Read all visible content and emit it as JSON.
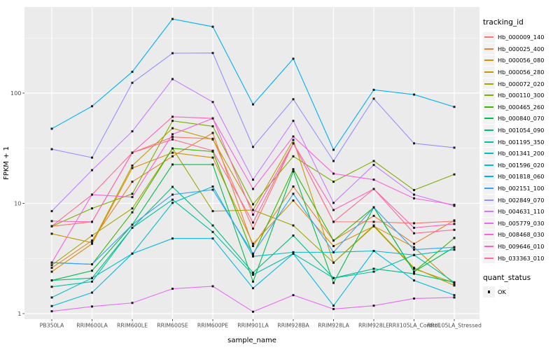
{
  "figure": {
    "y_axis_title": "FPKM + 1",
    "x_axis_title": "sample_name",
    "legend_title": "tracking_id",
    "legend2_title": "quant_status",
    "legend2_item": "OK",
    "panel_bg": "#EBEBEB",
    "grid_color": "#FFFFFF",
    "tick_label_color": "#4D4D4D",
    "point_color": "#1a1a1a"
  },
  "chart_data": {
    "type": "line",
    "title": "",
    "xlabel": "sample_name",
    "ylabel": "FPKM + 1",
    "y_scale": "log10",
    "y_ticks": [
      1,
      10,
      100
    ],
    "y_minor_ticks": [
      3.1623,
      31.623,
      316.23
    ],
    "ylim": [
      1,
      610
    ],
    "grid": true,
    "legend_position": "right",
    "point_shape": "black-square",
    "quant_status": "OK",
    "categories": [
      "PB350LA",
      "RRIM600LA",
      "RRIM600LE",
      "RRIM600SE",
      "RRIM600PE",
      "RRIM901LA",
      "RRIM928BA",
      "RRIM928LA",
      "RRIM928LE",
      "RRII105LA_Control",
      "RRII105LA_Stressed"
    ],
    "series": [
      {
        "name": "Hb_000009_140",
        "color": "#F8766D",
        "values": [
          6.2,
          6.8,
          28.8,
          40,
          38.5,
          5.9,
          35,
          6.8,
          6.8,
          6.6,
          6.9
        ]
      },
      {
        "name": "Hb_000025_400",
        "color": "#EA8331",
        "values": [
          2.6,
          4.6,
          15.7,
          26.7,
          43.5,
          4.1,
          14.2,
          4.6,
          7.7,
          4.3,
          7.0
        ]
      },
      {
        "name": "Hb_000056_080",
        "color": "#D89000",
        "values": [
          2.4,
          4.3,
          20.9,
          28.8,
          26.0,
          4.3,
          10.6,
          4.1,
          6.2,
          4.0,
          1.85
        ]
      },
      {
        "name": "Hb_000056_280",
        "color": "#C09B00",
        "values": [
          5.3,
          4.4,
          22.0,
          48.0,
          38.0,
          8.7,
          37.6,
          2.9,
          6.3,
          2.6,
          1.8
        ]
      },
      {
        "name": "Hb_000072_020",
        "color": "#A3A500",
        "values": [
          2.75,
          5.1,
          9.0,
          31.5,
          8.5,
          8.7,
          6.3,
          2.9,
          6.2,
          2.55,
          1.9
        ]
      },
      {
        "name": "Hb_000110_300",
        "color": "#7CAE00",
        "values": [
          6.2,
          9.0,
          12.2,
          56.0,
          50.0,
          9.8,
          26.7,
          15.7,
          24.2,
          13.2,
          18.3
        ]
      },
      {
        "name": "Hb_000465_260",
        "color": "#39B600",
        "values": [
          2.9,
          2.8,
          8.3,
          31.5,
          29.5,
          3.4,
          20.4,
          4.6,
          9.2,
          2.4,
          4.85
        ]
      },
      {
        "name": "Hb_000840_070",
        "color": "#00BB4E",
        "values": [
          2.0,
          2.45,
          6.4,
          22.5,
          22.5,
          1.95,
          19.5,
          1.9,
          9.2,
          2.4,
          4.0
        ]
      },
      {
        "name": "Hb_001054_090",
        "color": "#00BF7D",
        "values": [
          2.0,
          2.1,
          6.0,
          14.1,
          6.3,
          2.35,
          5.1,
          2.1,
          2.55,
          2.3,
          1.92
        ]
      },
      {
        "name": "Hb_001195_350",
        "color": "#00C1A3",
        "values": [
          1.75,
          1.95,
          6.0,
          10.8,
          5.5,
          2.25,
          3.5,
          2.1,
          2.4,
          3.4,
          1.92
        ]
      },
      {
        "name": "Hb_001341_200",
        "color": "#00BFC4",
        "values": [
          1.4,
          2.1,
          3.5,
          10.1,
          14.2,
          3.3,
          3.6,
          3.6,
          3.7,
          3.4,
          3.8
        ]
      },
      {
        "name": "Hb_001596_020",
        "color": "#00BAE0",
        "values": [
          1.17,
          1.55,
          3.5,
          4.8,
          4.8,
          1.7,
          3.5,
          1.18,
          3.7,
          2.0,
          1.47
        ]
      },
      {
        "name": "Hb_001818_060",
        "color": "#00B0F6",
        "values": [
          47.5,
          76,
          156,
          470,
          400,
          79,
          205,
          30.6,
          107,
          97,
          75
        ]
      },
      {
        "name": "Hb_002151_100",
        "color": "#35A2FF",
        "values": [
          2.9,
          2.8,
          6.4,
          12.0,
          13.3,
          3.5,
          12.2,
          3.6,
          9.2,
          3.8,
          4.0
        ]
      },
      {
        "name": "Hb_002849_070",
        "color": "#9590FF",
        "values": [
          31,
          26,
          124,
          230,
          231,
          32.5,
          88,
          24.2,
          89,
          35,
          32
        ]
      },
      {
        "name": "Hb_004631_110",
        "color": "#C77CFF",
        "values": [
          8.5,
          20,
          45,
          134,
          83,
          16.4,
          56,
          10.1,
          22.3,
          12.0,
          9.5
        ]
      },
      {
        "name": "Hb_005779_030",
        "color": "#E76BF3",
        "values": [
          1.05,
          1.16,
          1.25,
          1.68,
          1.77,
          1.04,
          1.47,
          1.1,
          1.18,
          1.37,
          1.4
        ]
      },
      {
        "name": "Hb_008468_030",
        "color": "#FA62DB",
        "values": [
          2.9,
          12,
          11.4,
          42.3,
          59,
          13.5,
          40.4,
          18.6,
          16.4,
          11.1,
          9.7
        ]
      },
      {
        "name": "Hb_009646_010",
        "color": "#FF62BC",
        "values": [
          6.9,
          6.8,
          28.8,
          61,
          59,
          7.9,
          35,
          8.7,
          13.5,
          6.0,
          6.5
        ]
      },
      {
        "name": "Hb_033363_010",
        "color": "#FF6A98",
        "values": [
          6.2,
          12,
          28.8,
          38,
          30,
          6.7,
          35,
          6.8,
          13.5,
          5.35,
          5.75
        ]
      }
    ]
  }
}
